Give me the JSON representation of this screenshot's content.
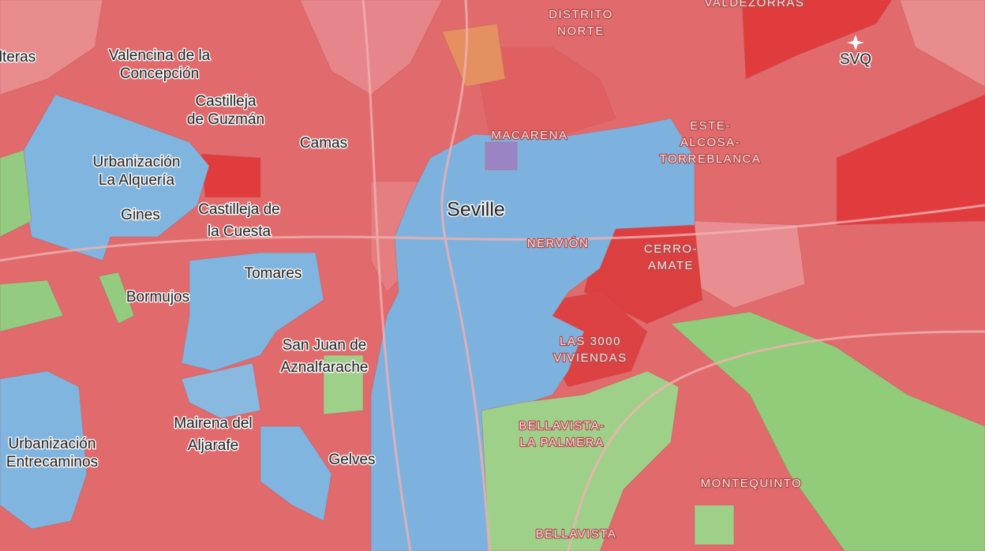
{
  "map": {
    "places": [
      [
        "lteras"
      ],
      [
        "Valencina de la",
        "Concepción"
      ],
      [
        "Castilleja",
        "de Guzmán"
      ],
      [
        "Camas"
      ],
      [
        "Urbanización",
        "La Alquería"
      ],
      [
        "Gines"
      ],
      [
        "Castilleja de",
        "la Cuesta"
      ],
      [
        "Tomares"
      ],
      [
        "Bormujos"
      ],
      [
        "San Juan de",
        "Aznalfarache"
      ],
      [
        "Mairena del",
        "Aljarafe"
      ],
      [
        "Urbanización",
        "Entrecaminos"
      ],
      [
        "Gelves"
      ],
      [
        "Seville"
      ],
      [
        "SVQ"
      ]
    ],
    "districts": [
      [
        "DISTRITO",
        "NORTE"
      ],
      [
        "VALDEZORRAS"
      ],
      [
        "MACARENA"
      ],
      [
        "ESTE-",
        "ALCOSA-",
        "TORREBLANCA"
      ],
      [
        "NERVIÓN"
      ],
      [
        "CERRO-",
        "AMATE"
      ],
      [
        "LAS 3000",
        "VIVIENDAS"
      ],
      [
        "BELLAVISTA-",
        "LA PALMERA"
      ],
      [
        "MONTEQUINTO"
      ],
      [
        "BELLAVISTA"
      ]
    ]
  }
}
